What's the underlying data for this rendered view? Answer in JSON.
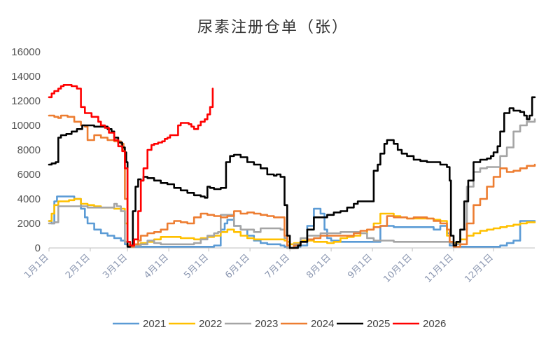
{
  "chart_data": {
    "type": "line",
    "title": "尿素注册仓单（张）",
    "ylim": [
      0,
      16000
    ],
    "yticks": [
      0,
      2000,
      4000,
      6000,
      8000,
      10000,
      12000,
      14000,
      16000
    ],
    "ytick_labels": [
      "0",
      "2000",
      "4000",
      "6000",
      "8000",
      "10000",
      "12000",
      "14000",
      "16000"
    ],
    "x_unit": "day_of_year",
    "xlim": [
      1,
      366
    ],
    "xticks": [
      1,
      32,
      60,
      91,
      121,
      152,
      182,
      213,
      244,
      274,
      305,
      335
    ],
    "xtick_labels": [
      "1月1日",
      "2月1日",
      "3月1日",
      "4月1日",
      "5月1日",
      "6月1日",
      "7月1日",
      "8月1日",
      "9月1日",
      "10月1日",
      "11月1日",
      "12月1日"
    ],
    "grid": false,
    "legend_position": "bottom",
    "series": [
      {
        "name": "2021",
        "color": "#5b9bd5",
        "x": [
          1,
          3,
          5,
          7,
          10,
          15,
          20,
          25,
          28,
          30,
          35,
          40,
          45,
          50,
          55,
          58,
          60,
          62,
          65,
          70,
          75,
          80,
          85,
          90,
          95,
          100,
          105,
          110,
          115,
          120,
          125,
          130,
          133,
          135,
          140,
          145,
          150,
          155,
          160,
          165,
          170,
          175,
          178,
          180,
          182,
          185,
          190,
          195,
          200,
          203,
          205,
          208,
          210,
          213,
          220,
          225,
          230,
          235,
          240,
          245,
          250,
          255,
          260,
          265,
          270,
          275,
          280,
          285,
          290,
          295,
          300,
          302,
          305,
          310,
          315,
          320,
          325,
          330,
          335,
          340,
          345,
          350,
          355,
          360,
          366
        ],
        "y": [
          2200,
          2000,
          3800,
          4200,
          4200,
          4200,
          4000,
          3200,
          2500,
          2000,
          1500,
          1200,
          1000,
          800,
          600,
          300,
          100,
          100,
          100,
          100,
          100,
          100,
          100,
          100,
          100,
          100,
          100,
          100,
          100,
          100,
          200,
          1500,
          2000,
          2300,
          1800,
          1500,
          1000,
          600,
          400,
          300,
          300,
          200,
          100,
          0,
          0,
          100,
          200,
          1800,
          3200,
          3200,
          2800,
          1500,
          800,
          600,
          500,
          500,
          500,
          500,
          500,
          500,
          1800,
          1800,
          1700,
          1700,
          1700,
          1700,
          1700,
          1700,
          1500,
          1800,
          1200,
          200,
          100,
          100,
          100,
          100,
          100,
          100,
          100,
          200,
          400,
          600,
          2200,
          2200,
          2200
        ]
      },
      {
        "name": "2022",
        "color": "#ffc000",
        "x": [
          1,
          3,
          5,
          8,
          12,
          16,
          20,
          25,
          30,
          35,
          40,
          45,
          50,
          55,
          58,
          60,
          62,
          65,
          70,
          75,
          80,
          85,
          90,
          95,
          100,
          105,
          110,
          115,
          120,
          125,
          130,
          135,
          140,
          145,
          150,
          155,
          160,
          165,
          170,
          175,
          178,
          180,
          182,
          185,
          190,
          195,
          200,
          205,
          210,
          215,
          220,
          225,
          230,
          235,
          240,
          245,
          250,
          255,
          260,
          265,
          270,
          275,
          280,
          285,
          290,
          295,
          300,
          302,
          305,
          310,
          315,
          320,
          325,
          330,
          335,
          340,
          345,
          350,
          355,
          360,
          366
        ],
        "y": [
          2200,
          2800,
          3500,
          3800,
          3800,
          3900,
          4000,
          3600,
          3500,
          3400,
          3300,
          3300,
          3200,
          3200,
          2000,
          200,
          200,
          300,
          400,
          500,
          700,
          900,
          900,
          900,
          800,
          800,
          700,
          800,
          900,
          1000,
          1300,
          1500,
          1300,
          1000,
          800,
          700,
          700,
          700,
          700,
          700,
          600,
          500,
          300,
          400,
          600,
          600,
          500,
          500,
          400,
          500,
          800,
          900,
          1000,
          1200,
          1500,
          2000,
          2800,
          2800,
          2600,
          2500,
          2400,
          2400,
          2400,
          2400,
          2300,
          2200,
          1000,
          500,
          400,
          700,
          1000,
          1200,
          1400,
          1500,
          1600,
          1700,
          1800,
          1900,
          2000,
          2100,
          2100
        ]
      },
      {
        "name": "2023",
        "color": "#a5a5a5",
        "x": [
          1,
          3,
          5,
          8,
          10,
          15,
          20,
          25,
          30,
          35,
          40,
          45,
          50,
          52,
          55,
          58,
          60,
          62,
          65,
          70,
          75,
          80,
          85,
          90,
          95,
          100,
          105,
          110,
          115,
          120,
          125,
          128,
          130,
          135,
          140,
          145,
          150,
          155,
          160,
          165,
          170,
          175,
          178,
          180,
          182,
          185,
          190,
          195,
          200,
          205,
          210,
          215,
          220,
          225,
          230,
          235,
          240,
          245,
          250,
          255,
          260,
          265,
          270,
          275,
          280,
          285,
          290,
          295,
          300,
          302,
          305,
          310,
          315,
          320,
          325,
          330,
          335,
          340,
          345,
          350,
          355,
          360,
          366
        ],
        "y": [
          2000,
          2000,
          2100,
          3400,
          3400,
          3400,
          3400,
          3400,
          3300,
          3300,
          3300,
          3300,
          3600,
          3400,
          3000,
          500,
          200,
          200,
          200,
          300,
          600,
          400,
          300,
          300,
          300,
          300,
          300,
          400,
          700,
          1000,
          1200,
          1300,
          2700,
          2700,
          1800,
          1500,
          1500,
          1300,
          1600,
          1600,
          1600,
          1500,
          800,
          0,
          0,
          300,
          800,
          1000,
          1000,
          1200,
          1200,
          1200,
          1300,
          1300,
          1300,
          1200,
          800,
          600,
          600,
          600,
          500,
          500,
          500,
          500,
          500,
          500,
          500,
          500,
          500,
          400,
          300,
          1500,
          5000,
          6200,
          6500,
          6600,
          6600,
          7500,
          8200,
          9500,
          10000,
          10300,
          10500
        ]
      },
      {
        "name": "2024",
        "color": "#ed7d31",
        "x": [
          1,
          3,
          5,
          8,
          10,
          15,
          20,
          25,
          28,
          30,
          35,
          40,
          45,
          50,
          55,
          57,
          58,
          60,
          62,
          65,
          68,
          70,
          75,
          80,
          85,
          90,
          95,
          100,
          105,
          110,
          115,
          120,
          125,
          130,
          135,
          140,
          145,
          150,
          155,
          160,
          165,
          170,
          175,
          178,
          180,
          182,
          185,
          190,
          195,
          200,
          205,
          210,
          215,
          220,
          225,
          230,
          235,
          240,
          245,
          250,
          255,
          260,
          265,
          270,
          275,
          280,
          285,
          290,
          295,
          300,
          302,
          305,
          310,
          315,
          320,
          325,
          330,
          335,
          340,
          345,
          350,
          355,
          360,
          366
        ],
        "y": [
          10800,
          10800,
          10700,
          10600,
          10800,
          10700,
          10300,
          10000,
          9900,
          8800,
          9200,
          9000,
          8800,
          8700,
          8500,
          8000,
          4000,
          200,
          100,
          300,
          600,
          1000,
          1200,
          1300,
          1500,
          2000,
          2200,
          2100,
          2000,
          2500,
          2800,
          2700,
          2600,
          2500,
          2600,
          3000,
          2800,
          2900,
          2800,
          2700,
          2600,
          2500,
          2500,
          1000,
          200,
          0,
          200,
          500,
          700,
          800,
          1000,
          1000,
          1000,
          1000,
          1000,
          1200,
          1400,
          1500,
          1700,
          1800,
          2600,
          2500,
          2500,
          2400,
          2500,
          2500,
          2400,
          2200,
          2000,
          1500,
          500,
          100,
          300,
          2000,
          3500,
          4000,
          5000,
          5800,
          6500,
          6200,
          6300,
          6500,
          6700,
          6800
        ]
      },
      {
        "name": "2025",
        "color": "#000000",
        "x": [
          1,
          3,
          6,
          8,
          10,
          14,
          18,
          22,
          26,
          30,
          35,
          40,
          45,
          48,
          50,
          53,
          56,
          58,
          59,
          60,
          61,
          62,
          64,
          66,
          68,
          70,
          72,
          75,
          80,
          85,
          90,
          95,
          100,
          105,
          110,
          115,
          118,
          120,
          122,
          125,
          130,
          132,
          134,
          137,
          140,
          145,
          150,
          155,
          160,
          165,
          170,
          172,
          175,
          178,
          180,
          182,
          185,
          188,
          190,
          195,
          200,
          205,
          210,
          215,
          220,
          225,
          230,
          233,
          237,
          240,
          245,
          248,
          250,
          253,
          255,
          258,
          260,
          263,
          266,
          270,
          275,
          280,
          285,
          290,
          295,
          300,
          302,
          303,
          305,
          307,
          310,
          313,
          316,
          320,
          325,
          330,
          333,
          335,
          338,
          340,
          343,
          347,
          350,
          355,
          358,
          360,
          362,
          364,
          366
        ],
        "y": [
          6800,
          6900,
          7000,
          9000,
          9200,
          9300,
          9500,
          9700,
          10000,
          10000,
          9900,
          9900,
          9700,
          9500,
          9000,
          8600,
          8200,
          7800,
          7000,
          100,
          100,
          200,
          3000,
          5000,
          5600,
          5500,
          5800,
          5700,
          5500,
          5300,
          5200,
          4900,
          4700,
          4500,
          4300,
          4200,
          4100,
          5000,
          4900,
          4800,
          4900,
          4900,
          7000,
          7500,
          7600,
          7400,
          7000,
          6800,
          6500,
          6000,
          5900,
          6000,
          5800,
          3500,
          1000,
          0,
          0,
          200,
          500,
          1500,
          2500,
          2500,
          2700,
          2900,
          3000,
          3300,
          3600,
          3800,
          3800,
          3800,
          6300,
          6800,
          7700,
          8500,
          8800,
          8800,
          8500,
          8000,
          7700,
          7500,
          7200,
          7100,
          7000,
          7000,
          6800,
          6600,
          5500,
          1000,
          200,
          500,
          1500,
          3800,
          5500,
          7000,
          7200,
          7300,
          7500,
          7800,
          8300,
          9500,
          11000,
          11400,
          11200,
          11100,
          10800,
          10500,
          10800,
          12300,
          12300
        ]
      },
      {
        "name": "2026",
        "color": "#ff0000",
        "x": [
          1,
          3,
          5,
          8,
          10,
          12,
          15,
          18,
          20,
          22,
          25,
          28,
          30,
          33,
          36,
          38,
          40,
          43,
          46,
          50,
          53,
          56,
          58,
          60,
          62,
          65,
          68,
          70,
          72,
          75,
          78,
          80,
          83,
          86,
          88,
          90,
          92,
          95,
          98,
          100,
          103,
          106,
          108,
          110,
          113,
          115,
          118,
          120,
          122,
          124
        ],
        "y": [
          12300,
          12600,
          12800,
          13000,
          13200,
          13300,
          13300,
          13200,
          13200,
          13000,
          11500,
          11000,
          11000,
          10700,
          10700,
          10300,
          10000,
          9800,
          9400,
          8800,
          8300,
          7900,
          6500,
          500,
          200,
          700,
          3000,
          5500,
          6500,
          8000,
          8400,
          8500,
          8600,
          8700,
          8900,
          9000,
          9200,
          9200,
          10000,
          10200,
          10200,
          10100,
          9900,
          9700,
          10000,
          10300,
          10500,
          10900,
          11500,
          13000
        ]
      }
    ]
  }
}
